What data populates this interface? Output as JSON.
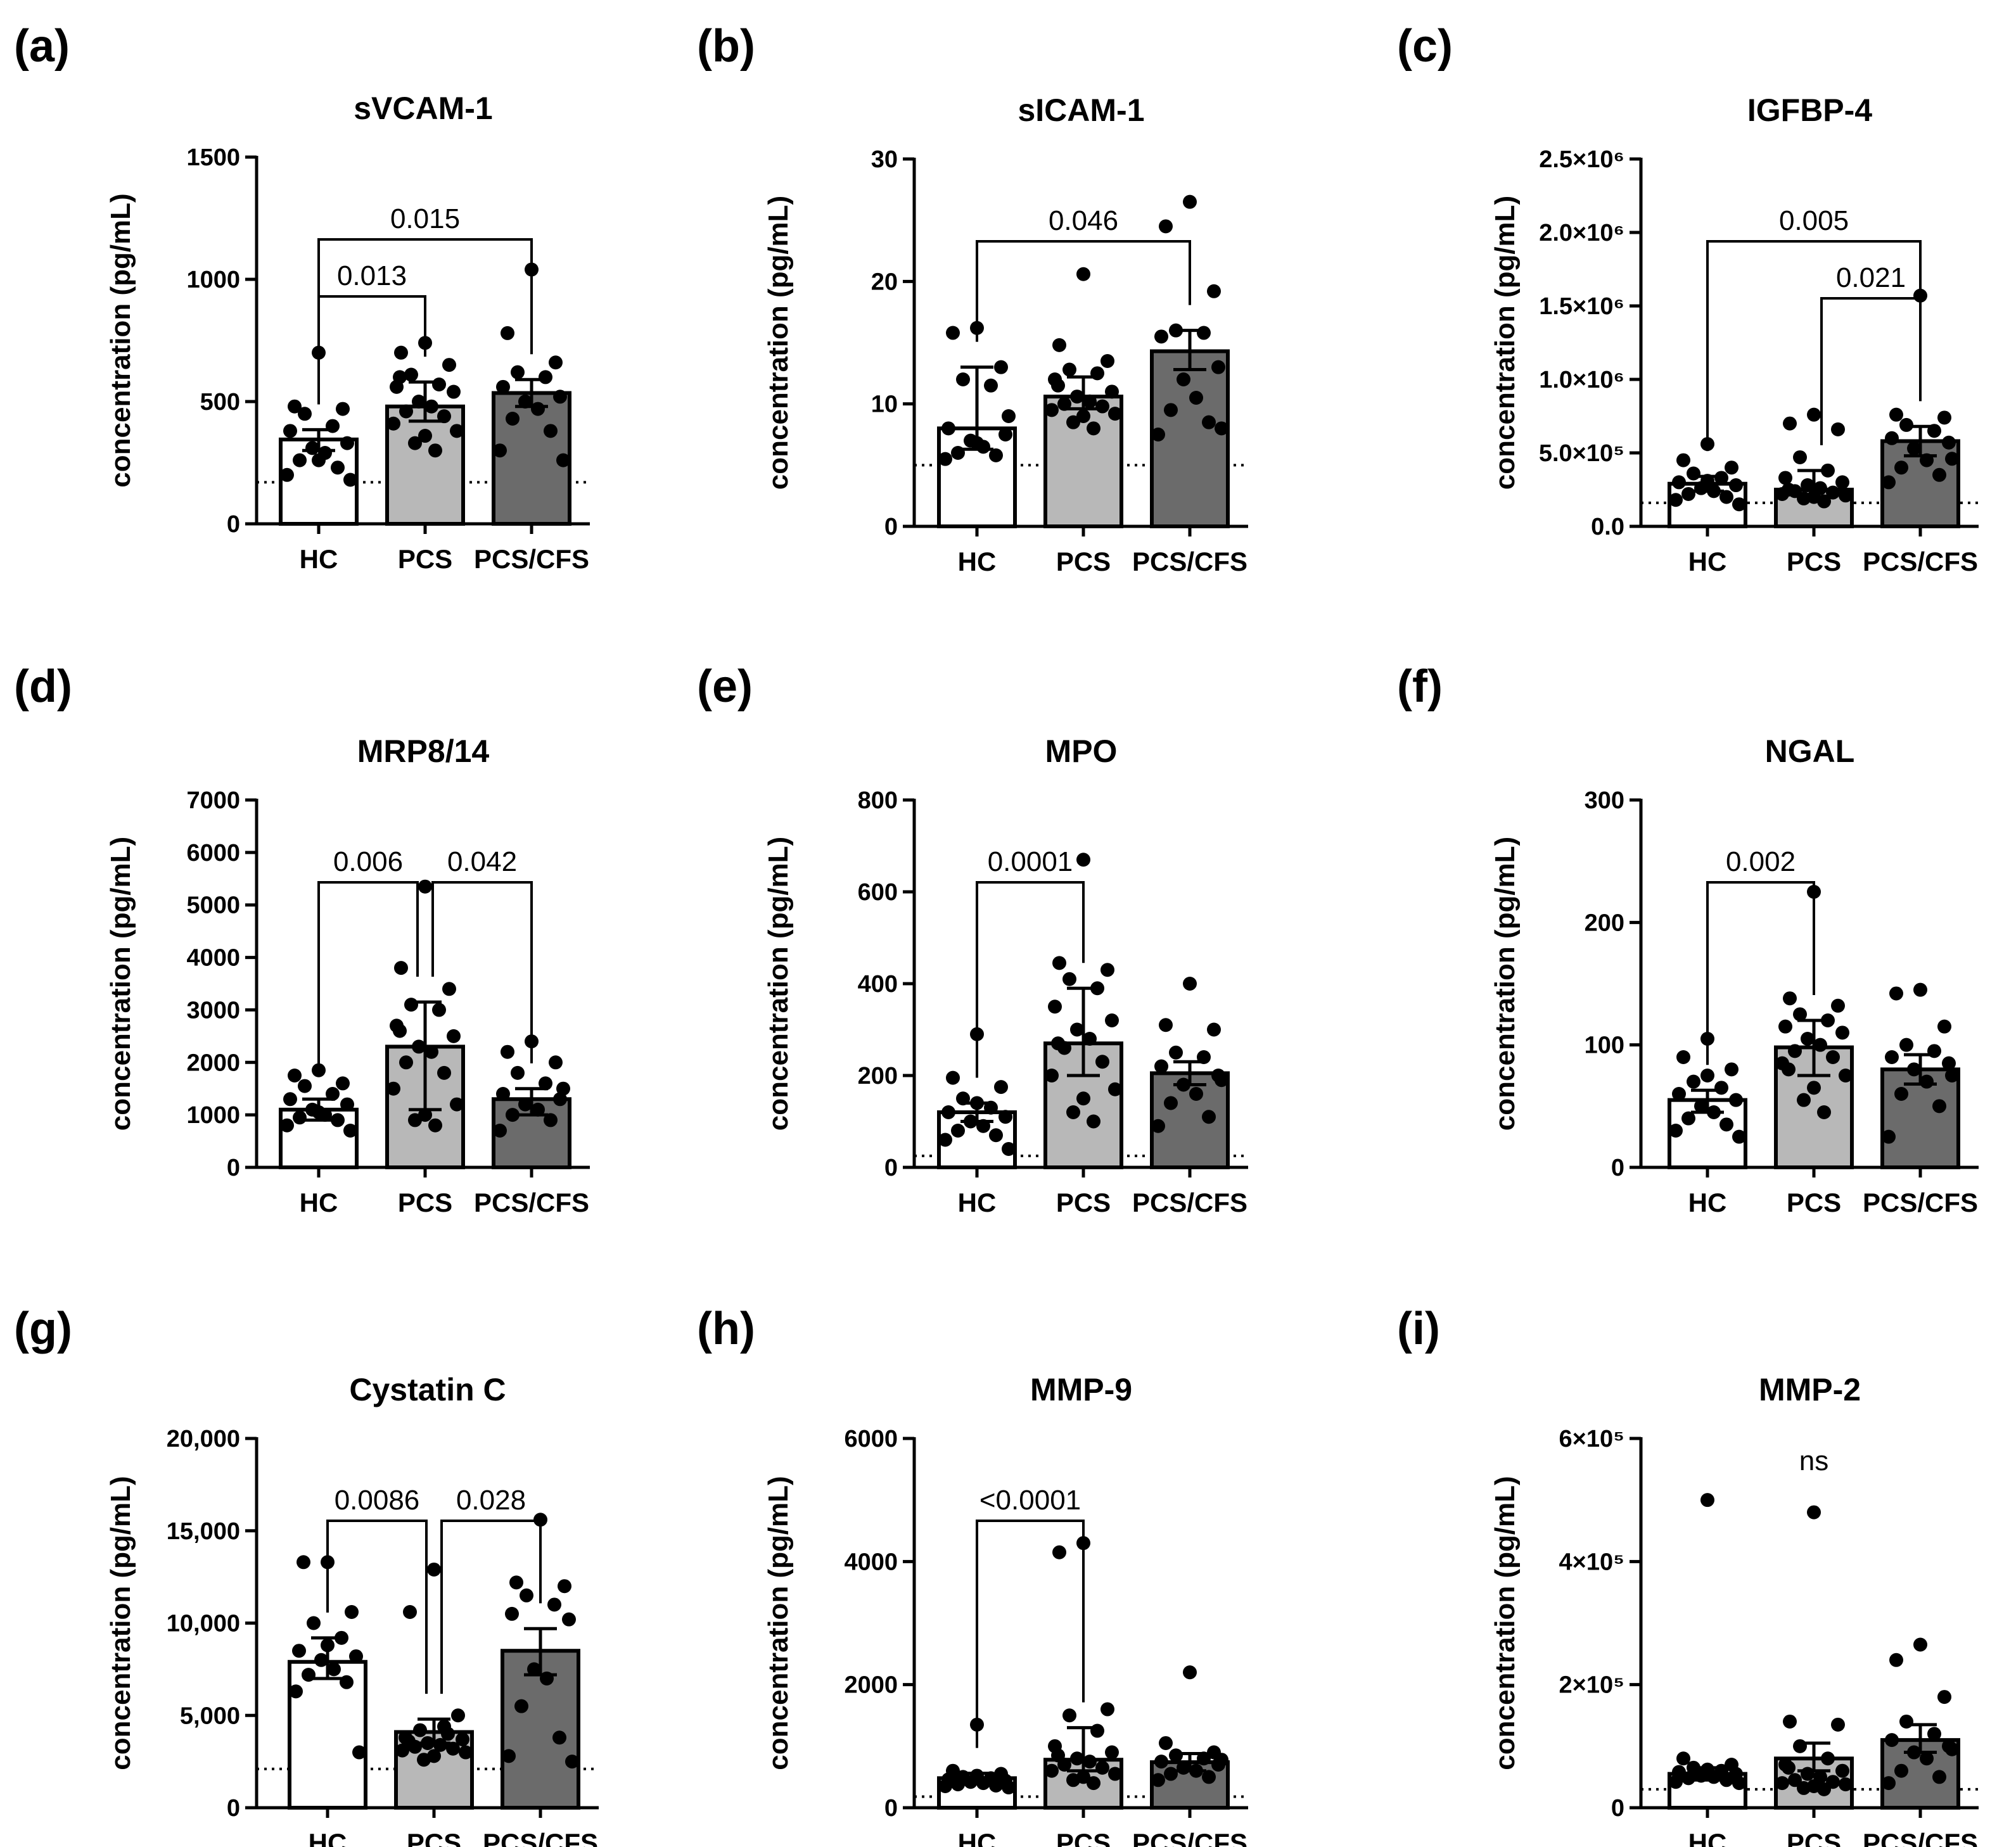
{
  "chart_data": [
    {
      "panel": "(a)",
      "title": "sVCAM-1",
      "type": "bar",
      "ylabel": "concentration (pg/mL)",
      "categories": [
        "HC",
        "PCS",
        "PCS/CFS"
      ],
      "ylim": [
        0,
        1500
      ],
      "yticks": [
        0,
        500,
        1000,
        1500
      ],
      "ytick_labels": [
        "0",
        "500",
        "1000",
        "1500"
      ],
      "detection_limit": 170,
      "bar_fills": [
        "#ffffff",
        "#b8b8b8",
        "#6b6b6b"
      ],
      "means": [
        345,
        480,
        535
      ],
      "sem_low": [
        300,
        420,
        480
      ],
      "sem_high": [
        385,
        580,
        590
      ],
      "points": [
        [
          700,
          480,
          470,
          450,
          400,
          380,
          330,
          310,
          290,
          260,
          230,
          200,
          180,
          260
        ],
        [
          740,
          700,
          650,
          610,
          570,
          560,
          540,
          500,
          480,
          460,
          440,
          410,
          380,
          360,
          330,
          300,
          600
        ],
        [
          1040,
          780,
          660,
          620,
          600,
          560,
          520,
          500,
          470,
          430,
          380,
          300,
          260
        ]
      ],
      "comparisons": [
        {
          "from": 0,
          "to": 1,
          "label": "0.013",
          "level": 0
        },
        {
          "from": 0,
          "to": 2,
          "label": "0.015",
          "level": 1
        }
      ]
    },
    {
      "panel": "(b)",
      "title": "sICAM-1",
      "type": "bar",
      "ylabel": "concentration (pg/mL)",
      "categories": [
        "HC",
        "PCS",
        "PCS/CFS"
      ],
      "ylim": [
        0,
        30
      ],
      "yticks": [
        0,
        10,
        20,
        30
      ],
      "ytick_labels": [
        "0",
        "10",
        "20",
        "30"
      ],
      "detection_limit": 5,
      "bar_fills": [
        "#ffffff",
        "#b8b8b8",
        "#6b6b6b"
      ],
      "means": [
        8,
        10.6,
        14.3
      ],
      "sem_low": [
        6.3,
        9.6,
        12.8
      ],
      "sem_high": [
        13,
        12.2,
        16
      ],
      "points": [
        [
          16.2,
          15.8,
          13,
          12,
          11.5,
          8,
          7.5,
          7,
          6.5,
          6,
          5.8,
          5.5,
          9,
          6.8
        ],
        [
          20.6,
          14.8,
          13.5,
          12.8,
          12.5,
          12,
          11,
          10.6,
          10.2,
          10,
          9.8,
          9.5,
          9.2,
          9,
          8.5,
          8,
          11.5
        ],
        [
          26.5,
          24.5,
          19.2,
          16,
          15.8,
          15.5,
          13,
          12,
          10.5,
          9.5,
          8.5,
          7.5,
          8
        ]
      ],
      "comparisons": [
        {
          "from": 0,
          "to": 2,
          "label": "0.046",
          "level": 0
        }
      ]
    },
    {
      "panel": "(c)",
      "title": "IGFBP-4",
      "type": "bar",
      "ylabel": "concentration (pg/mL)",
      "categories": [
        "HC",
        "PCS",
        "PCS/CFS"
      ],
      "ylim": [
        0,
        2500000
      ],
      "yticks": [
        0,
        500000,
        1000000,
        1500000,
        2000000,
        2500000
      ],
      "ytick_labels": [
        "0.0",
        "5.0×10⁵",
        "1.0×10⁶",
        "1.5×10⁶",
        "2.0×10⁶",
        "2.5×10⁶"
      ],
      "detection_limit": 160000,
      "bar_fills": [
        "#ffffff",
        "#b8b8b8",
        "#6b6b6b"
      ],
      "means": [
        290000,
        250000,
        580000
      ],
      "sem_low": [
        240000,
        200000,
        480000
      ],
      "sem_high": [
        340000,
        380000,
        680000
      ],
      "points": [
        [
          560000,
          450000,
          400000,
          360000,
          330000,
          300000,
          280000,
          260000,
          240000,
          220000,
          200000,
          180000,
          150000,
          310000
        ],
        [
          760000,
          700000,
          660000,
          470000,
          380000,
          330000,
          300000,
          280000,
          260000,
          240000,
          230000,
          220000,
          210000,
          200000,
          190000,
          170000,
          250000
        ],
        [
          1570000,
          760000,
          740000,
          690000,
          650000,
          600000,
          570000,
          530000,
          450000,
          400000,
          350000,
          300000,
          460000
        ]
      ],
      "comparisons": [
        {
          "from": 1,
          "to": 2,
          "label": "0.021",
          "level": 0
        },
        {
          "from": 0,
          "to": 2,
          "label": "0.005",
          "level": 1
        }
      ]
    },
    {
      "panel": "(d)",
      "title": "MRP8/14",
      "type": "bar",
      "ylabel": "concentration (pg/mL)",
      "categories": [
        "HC",
        "PCS",
        "PCS/CFS"
      ],
      "ylim": [
        0,
        7000
      ],
      "yticks": [
        0,
        1000,
        2000,
        3000,
        4000,
        5000,
        6000,
        7000
      ],
      "ytick_labels": [
        "0",
        "1000",
        "2000",
        "3000",
        "4000",
        "5000",
        "6000",
        "7000"
      ],
      "detection_limit": null,
      "bar_fills": [
        "#ffffff",
        "#b8b8b8",
        "#6b6b6b"
      ],
      "means": [
        1100,
        2300,
        1300
      ],
      "sem_low": [
        900,
        1100,
        1000
      ],
      "sem_high": [
        1300,
        3150,
        1500
      ],
      "points": [
        [
          1850,
          1750,
          1600,
          1550,
          1400,
          1300,
          1200,
          1100,
          1000,
          950,
          900,
          800,
          700,
          1050
        ],
        [
          5350,
          3800,
          3400,
          3100,
          3000,
          2700,
          2500,
          2300,
          2200,
          2000,
          1800,
          1500,
          1200,
          1000,
          900,
          800,
          2600
        ],
        [
          2400,
          2200,
          2000,
          1800,
          1600,
          1400,
          1300,
          1200,
          1100,
          1000,
          900,
          700,
          1500
        ]
      ],
      "comparisons": [
        {
          "from": 0,
          "to": 1,
          "label": "0.006",
          "level": 0
        },
        {
          "from": 1,
          "to": 2,
          "label": "0.042",
          "level": 0
        }
      ]
    },
    {
      "panel": "(e)",
      "title": "MPO",
      "type": "bar",
      "ylabel": "concentration (pg/mL)",
      "categories": [
        "HC",
        "PCS",
        "PCS/CFS"
      ],
      "ylim": [
        0,
        800
      ],
      "yticks": [
        0,
        200,
        400,
        600,
        800
      ],
      "ytick_labels": [
        "0",
        "200",
        "400",
        "600",
        "800"
      ],
      "detection_limit": 25,
      "bar_fills": [
        "#ffffff",
        "#b8b8b8",
        "#6b6b6b"
      ],
      "means": [
        120,
        270,
        205
      ],
      "sem_low": [
        100,
        200,
        180
      ],
      "sem_high": [
        140,
        390,
        230
      ],
      "points": [
        [
          290,
          195,
          175,
          150,
          130,
          120,
          110,
          100,
          90,
          80,
          70,
          60,
          40,
          140
        ],
        [
          670,
          445,
          430,
          410,
          390,
          350,
          320,
          300,
          280,
          260,
          230,
          200,
          170,
          150,
          120,
          100,
          270
        ],
        [
          400,
          310,
          300,
          250,
          240,
          220,
          200,
          180,
          160,
          140,
          110,
          90,
          190
        ]
      ],
      "comparisons": [
        {
          "from": 0,
          "to": 1,
          "label": "0.0001",
          "level": 0
        }
      ]
    },
    {
      "panel": "(f)",
      "title": "NGAL",
      "type": "bar",
      "ylabel": "concentration (pg/mL)",
      "categories": [
        "HC",
        "PCS",
        "PCS/CFS"
      ],
      "ylim": [
        0,
        300
      ],
      "yticks": [
        0,
        100,
        200,
        300
      ],
      "ytick_labels": [
        "0",
        "100",
        "200",
        "300"
      ],
      "detection_limit": null,
      "bar_fills": [
        "#ffffff",
        "#b8b8b8",
        "#6b6b6b"
      ],
      "means": [
        55,
        98,
        80
      ],
      "sem_low": [
        45,
        75,
        68
      ],
      "sem_high": [
        63,
        120,
        92
      ],
      "points": [
        [
          105,
          90,
          80,
          70,
          65,
          60,
          55,
          50,
          45,
          40,
          35,
          30,
          25,
          75
        ],
        [
          225,
          138,
          132,
          125,
          120,
          115,
          110,
          105,
          100,
          95,
          90,
          85,
          75,
          65,
          55,
          45,
          80
        ],
        [
          145,
          142,
          115,
          100,
          95,
          90,
          85,
          80,
          70,
          60,
          50,
          25,
          75
        ]
      ],
      "comparisons": [
        {
          "from": 0,
          "to": 1,
          "label": "0.002",
          "level": 0
        }
      ]
    },
    {
      "panel": "(g)",
      "title": "Cystatin C",
      "type": "bar",
      "ylabel": "concentration (pg/mL)",
      "categories": [
        "HC",
        "PCS",
        "PCS/CFS"
      ],
      "ylim": [
        0,
        20000
      ],
      "yticks": [
        0,
        5000,
        10000,
        15000,
        20000
      ],
      "ytick_labels": [
        "0",
        "5,000",
        "10,000",
        "15,000",
        "20,000"
      ],
      "detection_limit": 2100,
      "bar_fills": [
        "#ffffff",
        "#b8b8b8",
        "#6b6b6b"
      ],
      "means": [
        7900,
        4100,
        8500
      ],
      "sem_low": [
        7000,
        3500,
        7200
      ],
      "sem_high": [
        9200,
        4800,
        9700
      ],
      "points": [
        [
          13300,
          13300,
          10600,
          10000,
          9200,
          8500,
          8200,
          8000,
          7500,
          7200,
          6800,
          6300,
          3000,
          8800
        ],
        [
          12900,
          10600,
          5000,
          4200,
          4000,
          3800,
          3700,
          3500,
          3400,
          3300,
          3200,
          3100,
          3000,
          2800,
          2600,
          4400,
          3600
        ],
        [
          15600,
          12200,
          12000,
          11500,
          11000,
          10500,
          10200,
          7500,
          7000,
          5500,
          3800,
          2800,
          2500
        ]
      ],
      "comparisons": [
        {
          "from": 0,
          "to": 1,
          "label": "0.0086",
          "level": 0
        },
        {
          "from": 1,
          "to": 2,
          "label": "0.028",
          "level": 0
        }
      ]
    },
    {
      "panel": "(h)",
      "title": "MMP-9",
      "type": "bar",
      "ylabel": "concentration (pg/mL)",
      "categories": [
        "HC",
        "PCS",
        "PCS/CFS"
      ],
      "ylim": [
        0,
        6000
      ],
      "yticks": [
        0,
        2000,
        4000,
        6000
      ],
      "ytick_labels": [
        "0",
        "2000",
        "4000",
        "6000"
      ],
      "detection_limit": 180,
      "bar_fills": [
        "#ffffff",
        "#b8b8b8",
        "#6b6b6b"
      ],
      "means": [
        480,
        780,
        740
      ],
      "sem_low": [
        420,
        600,
        600
      ],
      "sem_high": [
        560,
        1300,
        880
      ],
      "points": [
        [
          1350,
          600,
          550,
          500,
          480,
          460,
          440,
          420,
          400,
          380,
          360,
          350,
          330,
          520
        ],
        [
          4300,
          4150,
          1600,
          1500,
          1250,
          1000,
          900,
          800,
          750,
          700,
          650,
          600,
          550,
          500,
          450,
          400,
          850
        ],
        [
          2200,
          1050,
          900,
          850,
          800,
          750,
          700,
          650,
          600,
          550,
          500,
          450,
          780
        ]
      ],
      "comparisons": [
        {
          "from": 0,
          "to": 1,
          "label": "<0.0001",
          "level": 0
        }
      ]
    },
    {
      "panel": "(i)",
      "title": "MMP-2",
      "type": "bar",
      "ylabel": "concentration (pg/mL)",
      "categories": [
        "HC",
        "PCS",
        "PCS/CFS"
      ],
      "ylim": [
        0,
        600000
      ],
      "yticks": [
        0,
        200000,
        400000,
        600000
      ],
      "ytick_labels": [
        "0",
        "2×10⁵",
        "4×10⁵",
        "6×10⁵"
      ],
      "detection_limit": 30000,
      "bar_fills": [
        "#ffffff",
        "#b8b8b8",
        "#6b6b6b"
      ],
      "means": [
        55000,
        80000,
        110000
      ],
      "sem_low": [
        45000,
        60000,
        90000
      ],
      "sem_high": [
        65000,
        105000,
        135000
      ],
      "points": [
        [
          500000,
          80000,
          70000,
          65000,
          60000,
          58000,
          55000,
          52000,
          50000,
          48000,
          45000,
          42000,
          40000,
          62000
        ],
        [
          480000,
          140000,
          135000,
          100000,
          80000,
          70000,
          60000,
          55000,
          50000,
          45000,
          42000,
          40000,
          38000,
          35000,
          32000,
          30000,
          65000
        ],
        [
          265000,
          240000,
          180000,
          140000,
          120000,
          110000,
          100000,
          90000,
          80000,
          60000,
          50000,
          40000,
          95000
        ]
      ],
      "comparisons": [],
      "annotation": "ns"
    }
  ]
}
